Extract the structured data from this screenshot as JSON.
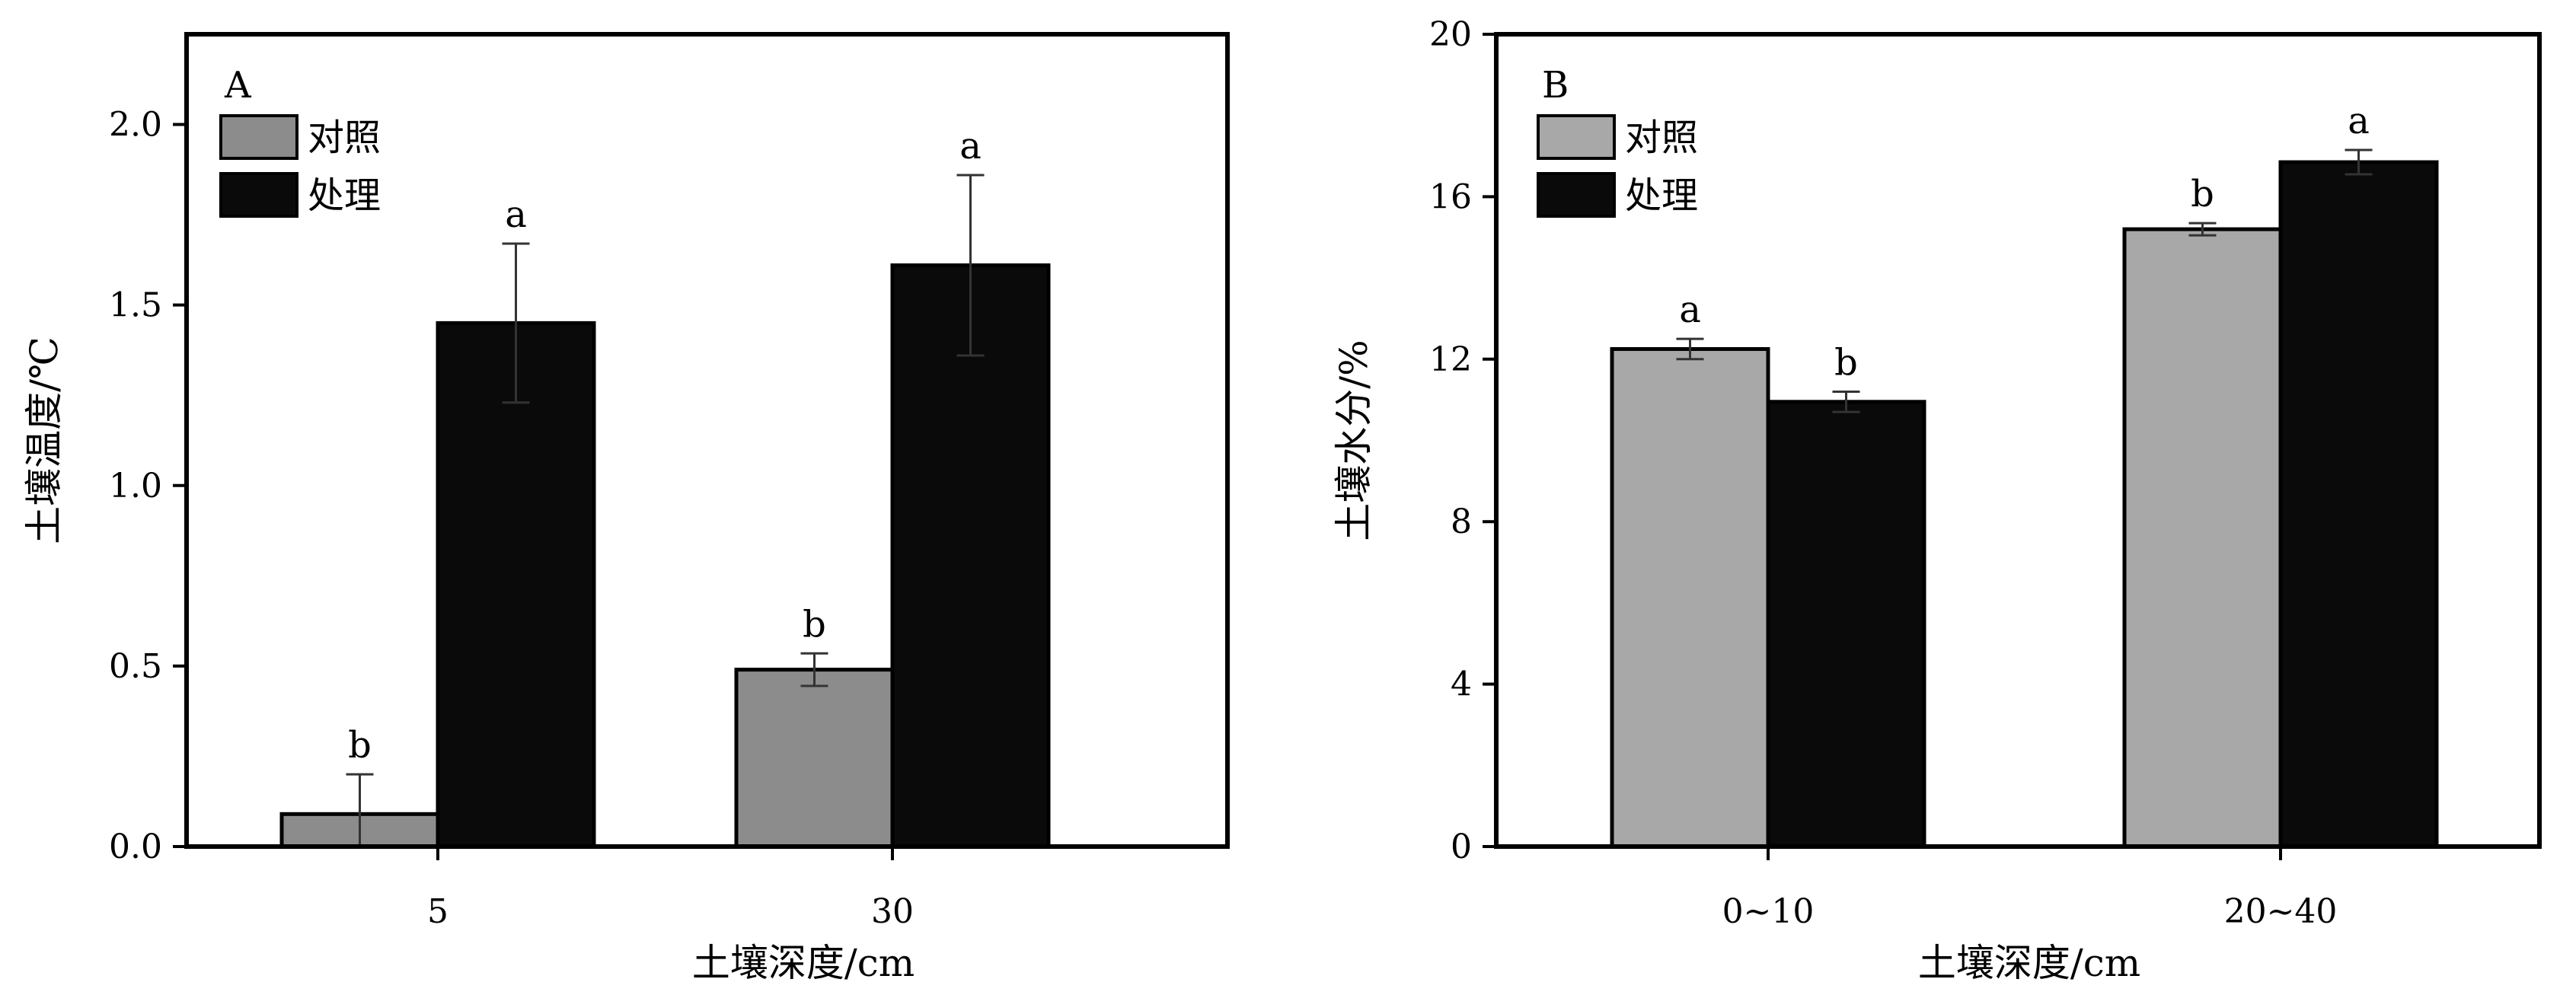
{
  "chart_data": [
    {
      "type": "bar",
      "panel_label": "A",
      "xlabel": "土壤深度/cm",
      "ylabel": "土壤温度/℃",
      "categories": [
        "5",
        "30"
      ],
      "ylim": [
        0,
        2.25
      ],
      "yticks": [
        0.0,
        0.5,
        1.0,
        1.5,
        2.0
      ],
      "ytick_labels": [
        "0.0",
        "0.5",
        "1.0",
        "1.5",
        "2.0"
      ],
      "legend_position": "top-left",
      "series": [
        {
          "name": "对照",
          "color": "#8c8c8c",
          "values": [
            0.09,
            0.49
          ],
          "errors": [
            0.11,
            0.045
          ],
          "letters": [
            "b",
            "b"
          ]
        },
        {
          "name": "处理",
          "color": "#0a0a0a",
          "values": [
            1.45,
            1.61
          ],
          "errors": [
            0.22,
            0.25
          ],
          "letters": [
            "a",
            "a"
          ]
        }
      ]
    },
    {
      "type": "bar",
      "panel_label": "B",
      "xlabel": "土壤深度/cm",
      "ylabel": "土壤水分/%",
      "categories": [
        "0~10",
        "20~40"
      ],
      "ylim": [
        0,
        20
      ],
      "yticks": [
        0,
        4,
        8,
        12,
        16,
        20
      ],
      "ytick_labels": [
        "0",
        "4",
        "8",
        "12",
        "16",
        "20"
      ],
      "legend_position": "top-left",
      "series": [
        {
          "name": "对照",
          "color": "#a8a8a8",
          "values": [
            12.25,
            15.2
          ],
          "errors": [
            0.25,
            0.15
          ],
          "letters": [
            "a",
            "b"
          ]
        },
        {
          "name": "处理",
          "color": "#0a0a0a",
          "values": [
            10.95,
            16.85
          ],
          "errors": [
            0.25,
            0.3
          ],
          "letters": [
            "b",
            "a"
          ]
        }
      ]
    }
  ]
}
